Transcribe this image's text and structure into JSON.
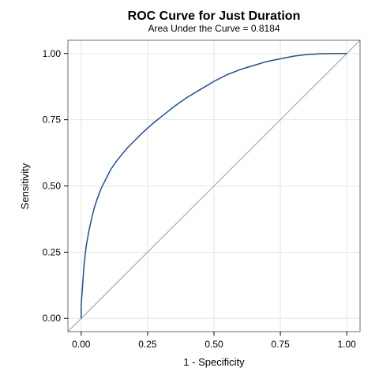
{
  "chart_data": {
    "type": "line",
    "title": "ROC Curve for Just Duration",
    "subtitle": "Area Under the Curve = 0.8184",
    "xlabel": "1 - Specificity",
    "ylabel": "Sensitivity",
    "xlim": [
      -0.05,
      1.05
    ],
    "ylim": [
      -0.05,
      1.05
    ],
    "x_ticks": [
      "0.00",
      "0.25",
      "0.50",
      "0.75",
      "1.00"
    ],
    "y_ticks": [
      "0.00",
      "0.25",
      "0.50",
      "0.75",
      "1.00"
    ],
    "grid": true,
    "reference_line": {
      "x": [
        0,
        1
      ],
      "y": [
        0,
        1
      ],
      "color": "#9a9a9a"
    },
    "series": [
      {
        "color": "#1f4e9a",
        "x": [
          0.0,
          0.0,
          0.005,
          0.01,
          0.015,
          0.02,
          0.03,
          0.04,
          0.05,
          0.06,
          0.075,
          0.09,
          0.11,
          0.13,
          0.15,
          0.175,
          0.2,
          0.225,
          0.25,
          0.275,
          0.3,
          0.35,
          0.4,
          0.45,
          0.5,
          0.55,
          0.6,
          0.65,
          0.7,
          0.75,
          0.8,
          0.85,
          0.9,
          0.95,
          1.0
        ],
        "y": [
          0.0,
          0.05,
          0.12,
          0.19,
          0.24,
          0.28,
          0.335,
          0.38,
          0.42,
          0.45,
          0.49,
          0.52,
          0.56,
          0.59,
          0.615,
          0.645,
          0.67,
          0.695,
          0.718,
          0.74,
          0.76,
          0.8,
          0.835,
          0.865,
          0.895,
          0.92,
          0.94,
          0.955,
          0.97,
          0.98,
          0.99,
          0.996,
          0.999,
          1.0,
          1.0
        ]
      }
    ]
  }
}
